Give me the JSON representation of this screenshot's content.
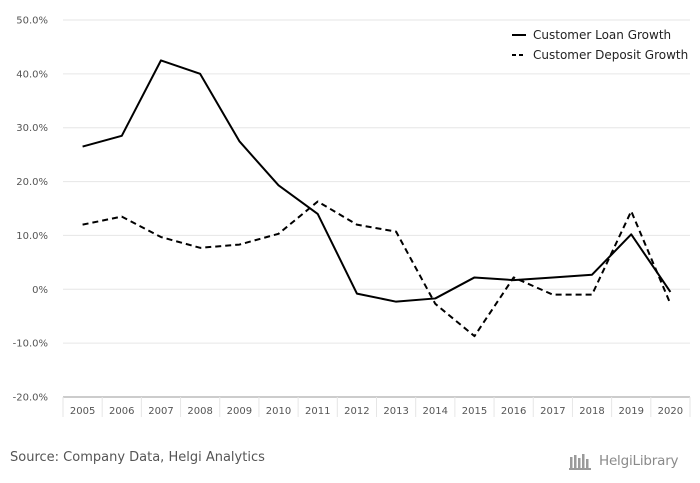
{
  "chart_data": {
    "type": "line",
    "categories": [
      "2005",
      "2006",
      "2007",
      "2008",
      "2009",
      "2010",
      "2011",
      "2012",
      "2013",
      "2014",
      "2015",
      "2016",
      "2017",
      "2018",
      "2019",
      "2020"
    ],
    "series": [
      {
        "name": "Customer Loan Growth",
        "style": "solid",
        "color": "#000000",
        "values": [
          26.5,
          28.5,
          42.5,
          40.0,
          27.5,
          19.3,
          14.0,
          -0.8,
          -2.3,
          -1.7,
          2.2,
          1.7,
          2.2,
          2.7,
          10.2,
          -0.5
        ]
      },
      {
        "name": "Customer Deposit Growth",
        "style": "dashed",
        "color": "#000000",
        "values": [
          12.0,
          13.5,
          9.7,
          7.7,
          8.3,
          10.3,
          16.3,
          12.0,
          10.7,
          -2.7,
          -8.7,
          2.2,
          -1.0,
          -1.0,
          14.5,
          -2.7
        ]
      }
    ],
    "ylim": [
      -20,
      50
    ],
    "yticks": [
      50,
      40,
      30,
      20,
      10,
      0,
      -10,
      -20
    ],
    "ytick_labels": [
      "50.0%",
      "40.0%",
      "30.0%",
      "20.0%",
      "10.0%",
      "0%",
      "-10.0%",
      "-20.0%"
    ],
    "grid": true,
    "legend_position": "top-right",
    "title": "",
    "xlabel": "",
    "ylabel": ""
  },
  "footer": {
    "source": "Source: Company Data, Helgi Analytics",
    "brand": "HelgiLibrary"
  },
  "colors": {
    "grid": "#e6e6e6",
    "axis": "#999999",
    "text": "#555555",
    "brand": "#8a8a8a"
  }
}
